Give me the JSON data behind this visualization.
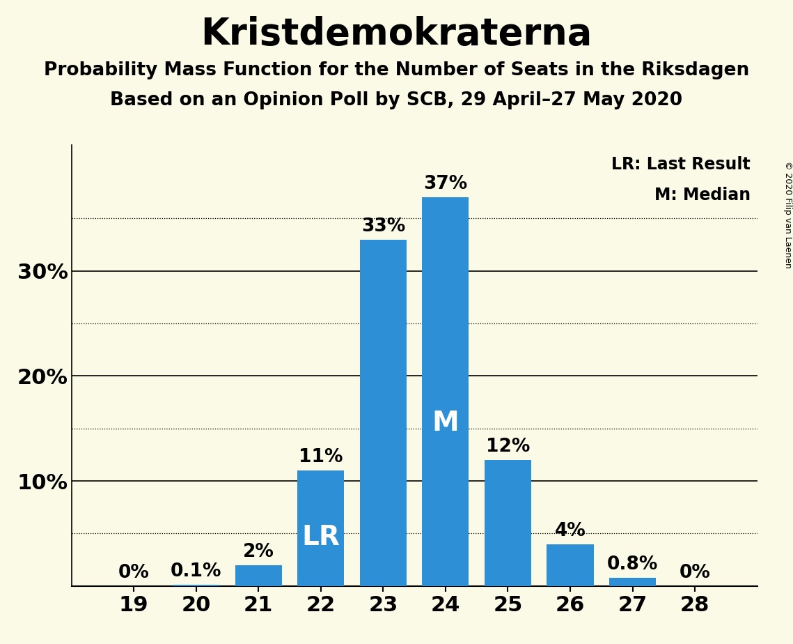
{
  "title": "Kristdemokraterna",
  "subtitle1": "Probability Mass Function for the Number of Seats in the Riksdagen",
  "subtitle2": "Based on an Opinion Poll by SCB, 29 April–27 May 2020",
  "copyright": "© 2020 Filip van Laenen",
  "seats": [
    19,
    20,
    21,
    22,
    23,
    24,
    25,
    26,
    27,
    28
  ],
  "probabilities": [
    0.0,
    0.1,
    2.0,
    11.0,
    33.0,
    37.0,
    12.0,
    4.0,
    0.8,
    0.0
  ],
  "bar_color": "#2d8fd5",
  "background_color": "#FAFAE6",
  "label_pcts": [
    "0%",
    "0.1%",
    "2%",
    "11%",
    "33%",
    "37%",
    "12%",
    "4%",
    "0.8%",
    "0%"
  ],
  "lr_seat": 22,
  "median_seat": 24,
  "legend_lr": "LR: Last Result",
  "legend_m": "M: Median",
  "solid_yticks": [
    0,
    10,
    20,
    30
  ],
  "dotted_yticks": [
    5,
    15,
    25,
    35
  ],
  "ylim": [
    0,
    42
  ]
}
